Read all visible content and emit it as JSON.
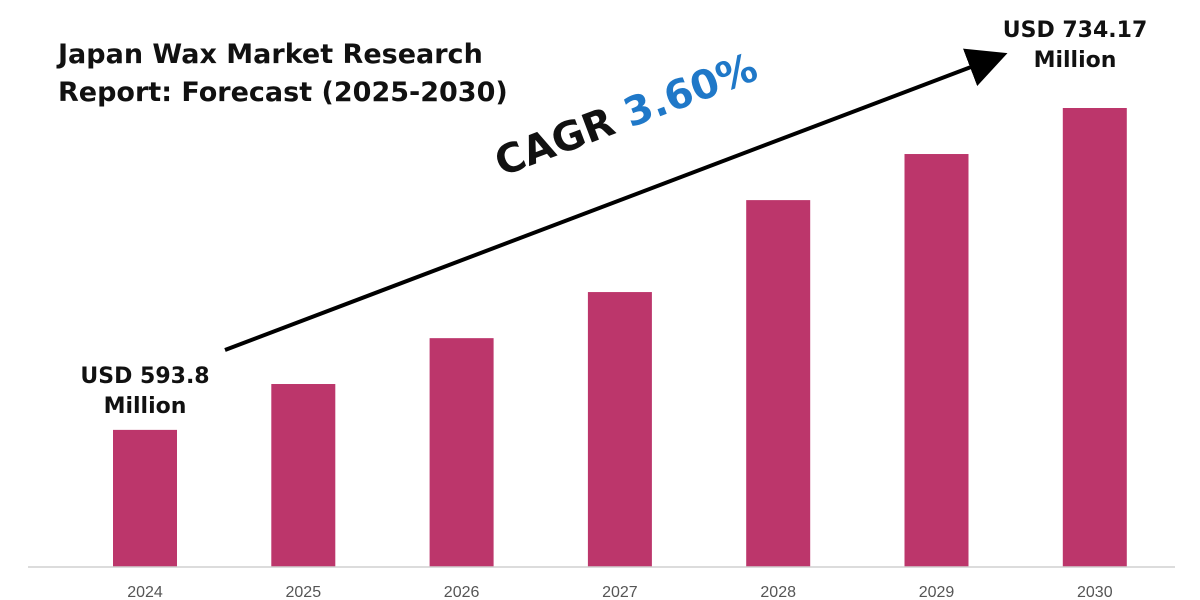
{
  "chart_data": {
    "type": "bar",
    "title": "Japan Wax Market Research Report: Forecast (2025-2030)",
    "title_lines": [
      "Japan Wax Market Research",
      "Report: Forecast (2025-2030)"
    ],
    "categories": [
      "2024",
      "2025",
      "2026",
      "2027",
      "2028",
      "2029",
      "2030"
    ],
    "values": [
      593.8,
      613.8,
      633.8,
      653.9,
      694.0,
      714.1,
      734.17
    ],
    "unit": "USD Million",
    "ylim": [
      534,
      734.17
    ],
    "xlabel": "",
    "ylabel": "",
    "grid": false,
    "bar_color": "#bc366b",
    "annotations": {
      "start": {
        "line1": "USD 593.8",
        "line2": "Million"
      },
      "end": {
        "line1": "USD 734.17",
        "line2": "Million"
      },
      "cagr_label": "CAGR",
      "cagr_value": "3.60%"
    }
  }
}
